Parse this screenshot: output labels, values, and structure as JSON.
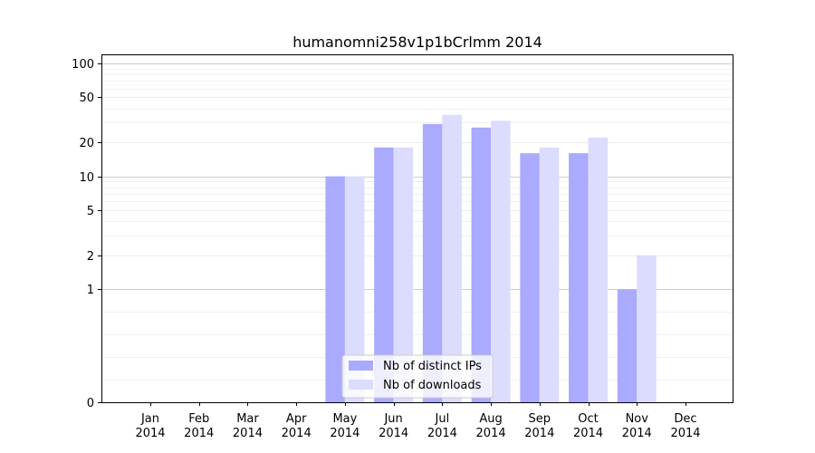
{
  "chart_data": {
    "type": "bar",
    "title": "humanomni258v1p1bCrlmm 2014",
    "xlabel": "",
    "ylabel": "",
    "y_scale": "symlog",
    "ylim": [
      0,
      120
    ],
    "y_ticks": [
      0,
      1,
      2,
      5,
      10,
      20,
      50,
      100
    ],
    "grid": true,
    "legend_position": "lower center",
    "categories": [
      {
        "month": "Jan",
        "year": "2014"
      },
      {
        "month": "Feb",
        "year": "2014"
      },
      {
        "month": "Mar",
        "year": "2014"
      },
      {
        "month": "Apr",
        "year": "2014"
      },
      {
        "month": "May",
        "year": "2014"
      },
      {
        "month": "Jun",
        "year": "2014"
      },
      {
        "month": "Jul",
        "year": "2014"
      },
      {
        "month": "Aug",
        "year": "2014"
      },
      {
        "month": "Sep",
        "year": "2014"
      },
      {
        "month": "Oct",
        "year": "2014"
      },
      {
        "month": "Nov",
        "year": "2014"
      },
      {
        "month": "Dec",
        "year": "2014"
      }
    ],
    "series": [
      {
        "name": "Nb of distinct IPs",
        "color": "#aaaaff",
        "values": [
          0,
          0,
          0,
          0,
          10,
          18,
          29,
          27,
          16,
          16,
          1,
          0
        ]
      },
      {
        "name": "Nb of downloads",
        "color": "#dcdcff",
        "values": [
          0,
          0,
          0,
          0,
          10,
          18,
          35,
          31,
          18,
          22,
          2,
          0
        ]
      }
    ]
  }
}
